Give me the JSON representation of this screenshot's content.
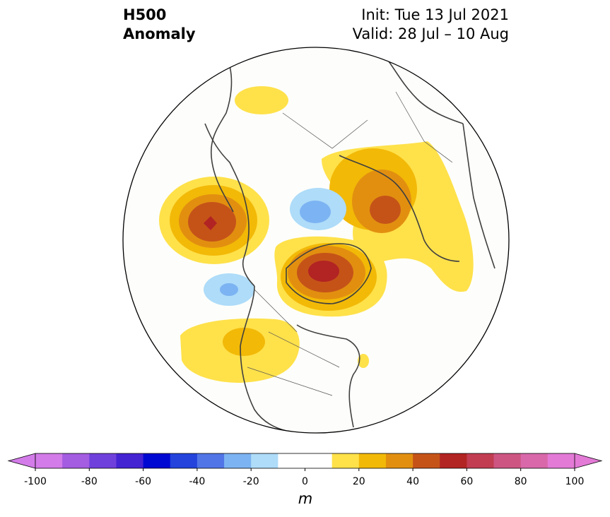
{
  "header": {
    "variable": "H500",
    "type": "Anomaly",
    "init": "Init: Tue 13 Jul 2021",
    "valid": "Valid: 28 Jul – 10 Aug"
  },
  "colorbar": {
    "unit": "m",
    "levels": [
      -100,
      -90,
      -80,
      -70,
      -60,
      -50,
      -40,
      -30,
      -20,
      -10,
      10,
      20,
      30,
      40,
      50,
      60,
      70,
      80,
      90,
      100
    ],
    "colors": [
      "#d37be9",
      "#a45ce1",
      "#7040dc",
      "#4423d3",
      "#0009d1",
      "#2343dc",
      "#5175e7",
      "#7cb3f2",
      "#aedcf9",
      "#ffffff",
      "#ffe14a",
      "#f2b907",
      "#e28f10",
      "#c55318",
      "#b22323",
      "#c23d52",
      "#cd5582",
      "#d868aa",
      "#e37ad6"
    ],
    "ticks": [
      "-100",
      "-80",
      "-60",
      "-40",
      "-20",
      "0",
      "20",
      "40",
      "60",
      "80",
      "100"
    ]
  },
  "map": {
    "projection": "north-polar-stereographic",
    "anomaly_centers": [
      {
        "region": "Northeast Pacific / Gulf of Alaska",
        "sign": "positive",
        "peak_m": 65
      },
      {
        "region": "Greenland / Canadian Arctic Archipelago",
        "sign": "positive",
        "peak_m": 55
      },
      {
        "region": "Siberia / Russian Arctic",
        "sign": "positive",
        "peak_m": 45
      },
      {
        "region": "Western United States",
        "sign": "positive",
        "peak_m": 25
      },
      {
        "region": "Barents-Kara Sea / Arctic Ocean",
        "sign": "negative",
        "peak_m": -35
      },
      {
        "region": "Central North Pacific",
        "sign": "negative",
        "peak_m": -30
      },
      {
        "region": "Western Europe",
        "sign": "positive",
        "peak_m": 10
      },
      {
        "region": "North Atlantic near Newfoundland",
        "sign": "positive",
        "peak_m": 12
      }
    ]
  }
}
